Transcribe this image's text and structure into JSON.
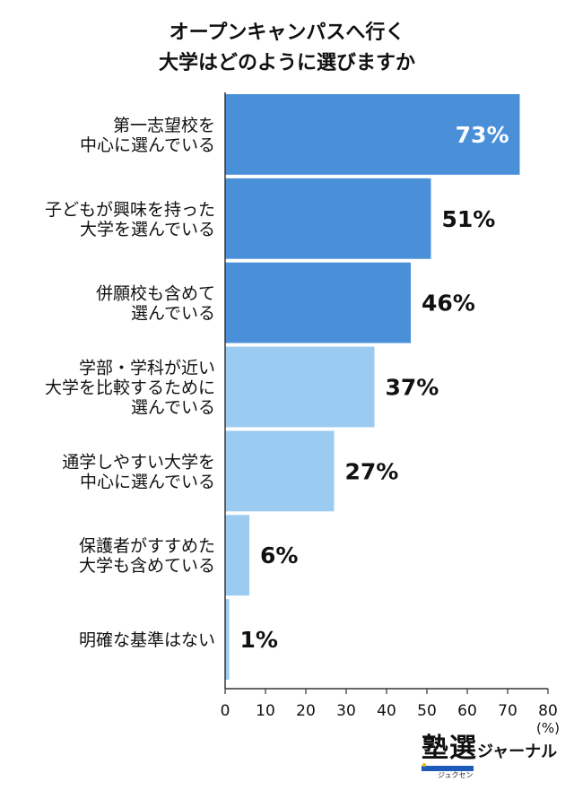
{
  "title": {
    "line1": "オープンキャンパスへ行く",
    "line2": "大学はどのように選びますか"
  },
  "colors": {
    "dark_bar": "#4a90d9",
    "light_bar": "#9bcbf0",
    "axis": "#333333",
    "grid": "#bbbbbb"
  },
  "chart_data": {
    "type": "bar",
    "orientation": "horizontal",
    "unit_label": "(%)",
    "xlim": [
      0,
      80
    ],
    "xticks": [
      0,
      10,
      20,
      30,
      40,
      50,
      60,
      70,
      80
    ],
    "categories": [
      [
        "第一志望校を",
        "中心に選んでいる"
      ],
      [
        "子どもが興味を持った",
        "大学を選んでいる"
      ],
      [
        "併願校も含めて",
        "選んでいる"
      ],
      [
        "学部・学科が近い",
        "大学を比較するために",
        "選んでいる"
      ],
      [
        "通学しやすい大学を",
        "中心に選んでいる"
      ],
      [
        "保護者がすすめた",
        "大学も含めている"
      ],
      [
        "明確な基準はない"
      ]
    ],
    "values": [
      73,
      51,
      46,
      37,
      27,
      6,
      1
    ],
    "value_labels": [
      "73%",
      "51%",
      "46%",
      "37%",
      "27%",
      "6%",
      "1%"
    ],
    "bar_tone": [
      "dark",
      "dark",
      "dark",
      "light",
      "light",
      "light",
      "light"
    ],
    "grid": false,
    "legend": "none"
  },
  "logo": {
    "main": "塾選",
    "sub": "ジャーナル",
    "small": "ジュクセン"
  }
}
